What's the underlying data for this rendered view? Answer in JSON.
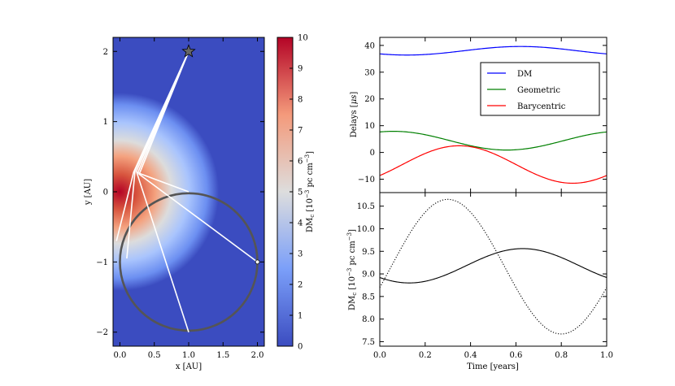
{
  "chart_data": [
    {
      "type": "heatmap",
      "name": "orbit-map",
      "xlabel": "x [AU]",
      "ylabel": "y [AU]",
      "xlim": [
        -0.1,
        2.1
      ],
      "ylim": [
        -2.2,
        2.2
      ],
      "xticks": [
        0.0,
        0.5,
        1.0,
        1.5,
        2.0
      ],
      "xtick_labels": [
        "0.0",
        "0.5",
        "1.0",
        "1.5",
        "2.0"
      ],
      "yticks": [
        -2,
        -1,
        0,
        1,
        2
      ],
      "ytick_labels": [
        "−2",
        "−1",
        "0",
        "1",
        "2"
      ],
      "star": {
        "x": 1.0,
        "y": 2.0
      },
      "observer": {
        "x": 2.0,
        "y": -1.0
      },
      "orbit": {
        "center": [
          1.0,
          -1.0
        ],
        "radius": 1.0
      },
      "heat_peak": {
        "x": 0.0,
        "y": 0.0,
        "value": 10,
        "width_au": 0.72
      },
      "rays": [
        {
          "bend": [
            0.2,
            0.28
          ],
          "end": [
            -0.05,
            -0.7
          ]
        },
        {
          "bend": [
            0.22,
            0.3
          ],
          "end": [
            0.1,
            -0.95
          ]
        },
        {
          "bend": [
            0.24,
            0.29
          ],
          "end": [
            1.0,
            -2.0
          ]
        },
        {
          "bend": [
            0.26,
            0.27
          ],
          "end": [
            1.0,
            0.0
          ]
        },
        {
          "bend": [
            0.28,
            0.25
          ],
          "end": [
            2.0,
            -1.0
          ]
        }
      ],
      "colorbar": {
        "label": "DM",
        "label_sub": "c",
        "label_units": " [10",
        "label_exp": "−3",
        "label_tail": " pc cm",
        "label_exp2": "−3",
        "label_end": "]",
        "range": [
          0,
          10
        ],
        "ticks": [
          "0",
          "1",
          "2",
          "3",
          "4",
          "5",
          "6",
          "7",
          "8",
          "9",
          "10"
        ]
      }
    },
    {
      "type": "line",
      "name": "delays",
      "ylabel_prefix": "Delays [",
      "ylabel_unit": "μs",
      "ylabel_suffix": "]",
      "xlim": [
        0.0,
        1.0
      ],
      "ylim": [
        -15,
        43
      ],
      "yticks": [
        -10,
        0,
        10,
        20,
        30,
        40
      ],
      "ytick_labels": [
        "−10",
        "0",
        "10",
        "20",
        "30",
        "40"
      ],
      "legend_position": "top-right",
      "series": [
        {
          "name": "DM",
          "color": "#0000ff",
          "offset": 38.0,
          "amplitude": 1.6,
          "phase_peak": 0.62
        },
        {
          "name": "Geometric",
          "color": "#008000",
          "offset": 4.4,
          "amplitude": 3.5,
          "phase_peak": 0.06
        },
        {
          "name": "Barycentric",
          "color": "#ff0000",
          "offset": -4.5,
          "amplitude": 7.0,
          "phase_peak": 0.35
        }
      ]
    },
    {
      "type": "line",
      "name": "dm-vs-time",
      "xlabel": "Time [years]",
      "ylabel_main": "DM",
      "ylabel_sub": "c",
      "ylabel_rest": " [10",
      "ylabel_exp": "−3",
      "ylabel_tail": " pc cm",
      "ylabel_exp2": "−3",
      "ylabel_end": "]",
      "xlim": [
        0.0,
        1.0
      ],
      "ylim": [
        7.4,
        10.8
      ],
      "xticks": [
        0.0,
        0.2,
        0.4,
        0.6,
        0.8,
        1.0
      ],
      "xtick_labels": [
        "0.0",
        "0.2",
        "0.4",
        "0.6",
        "0.8",
        "1.0"
      ],
      "yticks": [
        7.5,
        8.0,
        8.5,
        9.0,
        9.5,
        10.0,
        10.5
      ],
      "ytick_labels": [
        "7.5",
        "8.0",
        "8.5",
        "9.0",
        "9.5",
        "10.0",
        "10.5"
      ],
      "series": [
        {
          "name": "solid",
          "style": "solid",
          "offset": 9.18,
          "amplitude": 0.38,
          "phase_peak": 0.63
        },
        {
          "name": "dotted",
          "style": "dotted",
          "offset": 9.16,
          "amplitude": 1.49,
          "phase_peak": 0.3
        }
      ]
    }
  ]
}
